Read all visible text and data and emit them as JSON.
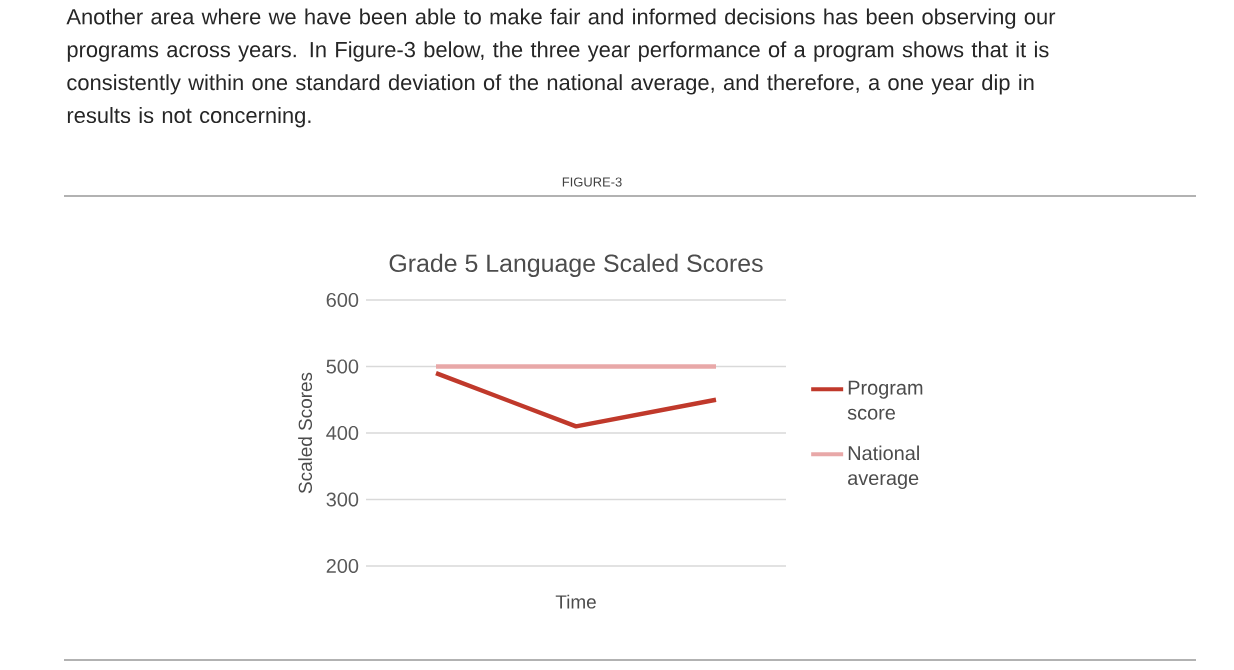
{
  "chart_data": {
    "type": "line",
    "title": "Grade 5 Language Scaled Scores",
    "xlabel": "Time",
    "ylabel": "Scaled Scores",
    "annotations": [
      "Another area where we have been able to make fair and informed decisions has been observing our programs across years. In Figure-3 below, the three year performance of a program shows that it is consistently within one standard deviation of the national average, and therefore, a one year dip in results is not concerning.",
      "FIGURE-3"
    ],
    "categories": [
      null,
      null,
      null
    ],
    "series": [
      {
        "name": "Program score",
        "color": "#c0392b",
        "values": [
          490,
          410,
          450
        ]
      },
      {
        "name": "National average",
        "color": "#e8a8a8",
        "values": [
          500,
          500,
          500
        ]
      }
    ],
    "ylim": [
      200,
      600
    ],
    "yticks": [
      200,
      300,
      400,
      500,
      600
    ],
    "grid": "y",
    "legend": "right",
    "marker": "none",
    "line_style": "solid"
  }
}
